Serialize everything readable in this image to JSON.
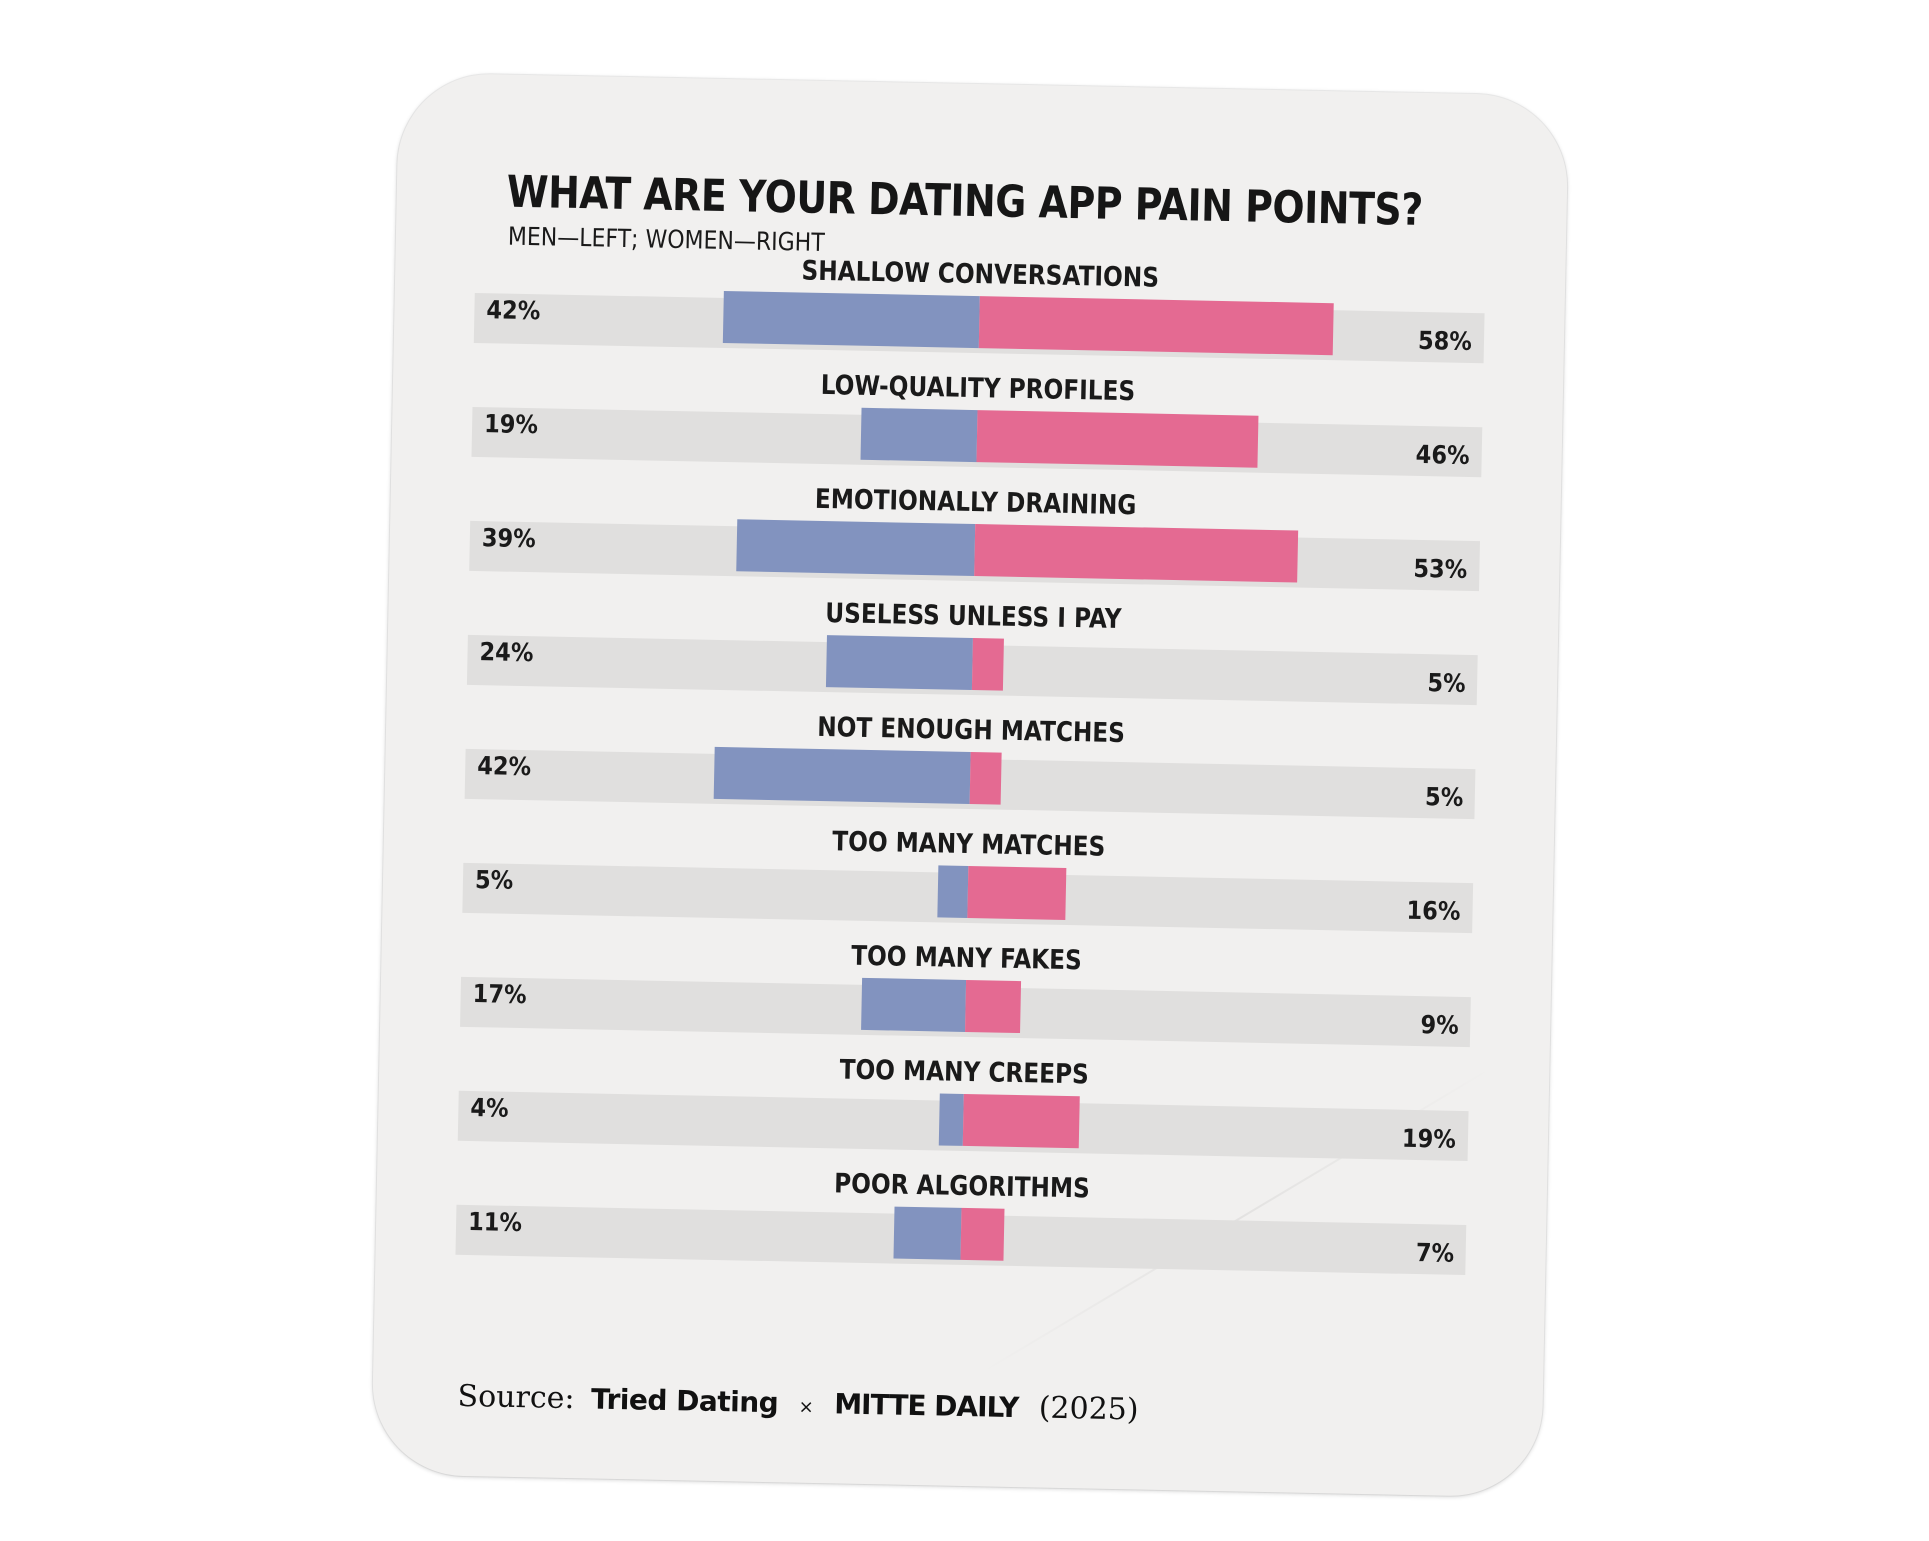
{
  "chart_data": {
    "type": "bar",
    "title": "WHAT ARE YOUR DATING APP PAIN POINTS?",
    "subtitle": "MEN—LEFT; WOMEN—RIGHT",
    "categories": [
      "SHALLOW CONVERSATIONS",
      "LOW-QUALITY PROFILES",
      "EMOTIONALLY DRAINING",
      "USELESS UNLESS I PAY",
      "NOT ENOUGH MATCHES",
      "TOO MANY MATCHES",
      "TOO MANY FAKES",
      "TOO MANY CREEPS",
      "POOR ALGORITHMS"
    ],
    "series": [
      {
        "name": "MEN",
        "values": [
          42,
          19,
          39,
          24,
          42,
          5,
          17,
          4,
          11
        ]
      },
      {
        "name": "WOMEN",
        "values": [
          58,
          46,
          53,
          5,
          5,
          16,
          9,
          19,
          7
        ]
      }
    ],
    "labels_men": [
      "42%",
      "19%",
      "39%",
      "24%",
      "42%",
      "5%",
      "17%",
      "4%",
      "11%"
    ],
    "labels_women": [
      "58%",
      "46%",
      "53%",
      "5%",
      "5%",
      "16%",
      "9%",
      "19%",
      "7%"
    ],
    "xlim": [
      -100,
      100
    ],
    "colors": {
      "men": "#8293bf",
      "women": "#e46a92",
      "track": "#e0dfde"
    }
  },
  "source": {
    "label": "Source:",
    "partner": "Tried Dating",
    "separator": "×",
    "publisher": "MITTE DAILY",
    "year": "(2025)"
  }
}
